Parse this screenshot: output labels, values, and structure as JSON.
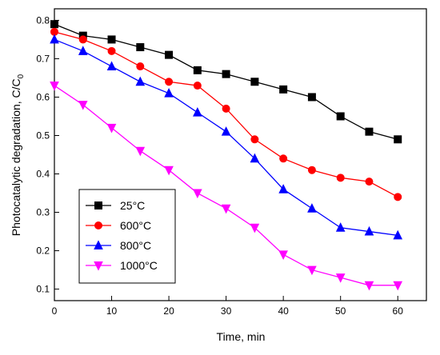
{
  "chart_data": {
    "type": "line",
    "x": [
      0,
      5,
      10,
      15,
      20,
      25,
      30,
      35,
      40,
      45,
      50,
      55,
      60
    ],
    "xlabel": "Time, min",
    "ylabel_main": "Photocatalytic degradation, C/C",
    "ylabel_sub": "0",
    "xlim": [
      0,
      65
    ],
    "ylim": [
      0.07,
      0.83
    ],
    "xticks": [
      0,
      10,
      20,
      30,
      40,
      50,
      60
    ],
    "yticks": [
      0.1,
      0.2,
      0.3,
      0.4,
      0.5,
      0.6,
      0.7,
      0.8
    ],
    "grid": false,
    "legend_position": "bottom-left",
    "series": [
      {
        "name": "25°C",
        "marker": "square",
        "color": "#000000",
        "values": [
          0.79,
          0.76,
          0.75,
          0.73,
          0.71,
          0.67,
          0.66,
          0.64,
          0.62,
          0.6,
          0.55,
          0.51,
          0.49
        ]
      },
      {
        "name": "600°C",
        "marker": "circle",
        "color": "#ff0000",
        "values": [
          0.77,
          0.75,
          0.72,
          0.68,
          0.64,
          0.63,
          0.57,
          0.49,
          0.44,
          0.41,
          0.39,
          0.38,
          0.34
        ]
      },
      {
        "name": "800°C",
        "marker": "triangle-up",
        "color": "#0000ff",
        "values": [
          0.75,
          0.72,
          0.68,
          0.64,
          0.61,
          0.56,
          0.51,
          0.44,
          0.36,
          0.31,
          0.26,
          0.25,
          0.24
        ]
      },
      {
        "name": "1000°C",
        "marker": "triangle-down",
        "color": "#ff00ff",
        "values": [
          0.63,
          0.58,
          0.52,
          0.46,
          0.41,
          0.35,
          0.31,
          0.26,
          0.19,
          0.15,
          0.13,
          0.11,
          0.11
        ]
      }
    ]
  }
}
